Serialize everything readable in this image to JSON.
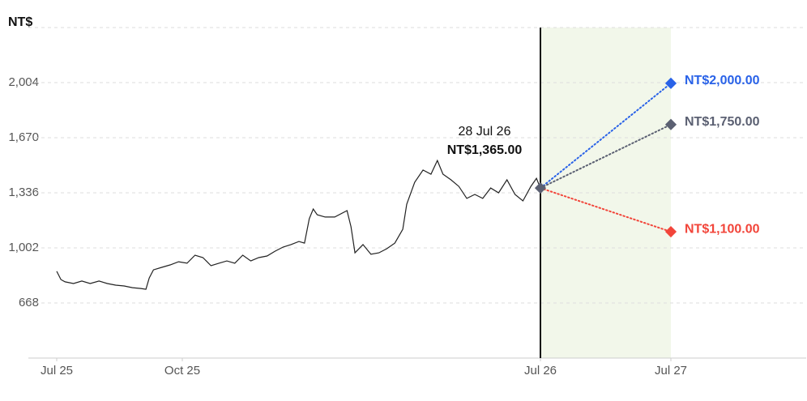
{
  "chart_data": {
    "type": "line",
    "y_axis_label": "NT$",
    "color": "#222222",
    "x": [
      0,
      0.1,
      0.2,
      0.4,
      0.6,
      0.8,
      1.01,
      1.21,
      1.41,
      1.61,
      1.81,
      2.01,
      2.13,
      2.21,
      2.31,
      2.51,
      2.71,
      2.91,
      3.12,
      3.32,
      3.52,
      3.72,
      3.92,
      4.12,
      4.32,
      4.52,
      4.72,
      4.92,
      5.13,
      5.33,
      5.53,
      5.73,
      5.93,
      6.07,
      6.19,
      6.29,
      6.39,
      6.59,
      6.83,
      7.14,
      7.24,
      7.34,
      7.54,
      7.74,
      7.94,
      8.14,
      8.34,
      8.54,
      8.64,
      8.84,
      9.05,
      9.25,
      9.41,
      9.55,
      9.75,
      9.95,
      10.15,
      10.35,
      10.55,
      10.75,
      10.95,
      11.16,
      11.36,
      11.56,
      11.76,
      11.9,
      12
    ],
    "values": [
      860,
      810,
      796,
      786,
      801,
      786,
      801,
      786,
      776,
      771,
      761,
      756,
      751,
      820,
      869,
      884,
      899,
      918,
      909,
      958,
      943,
      894,
      909,
      923,
      909,
      958,
      923,
      943,
      953,
      982,
      1007,
      1022,
      1041,
      1031,
      1179,
      1238,
      1203,
      1189,
      1189,
      1228,
      1130,
      972,
      1022,
      963,
      972,
      997,
      1031,
      1115,
      1267,
      1400,
      1474,
      1449,
      1532,
      1449,
      1415,
      1375,
      1302,
      1326,
      1302,
      1365,
      1336,
      1415,
      1326,
      1287,
      1375,
      1424,
      1365
    ],
    "xlim": [
      -0.7,
      36.5
    ],
    "xticks": [
      {
        "value": 0,
        "label": "Jul 25"
      },
      {
        "value": 3,
        "label": "Oct 25"
      },
      {
        "value": 12,
        "label": "Jul 26"
      },
      {
        "value": 24,
        "label": "Jul 27"
      }
    ],
    "ylim": [
      334,
      2338
    ],
    "yticks": [
      668,
      {
        "value": 1002,
        "label": "1,002"
      },
      {
        "value": 1336,
        "label": "1,336"
      },
      {
        "value": 1670,
        "label": "1,670"
      },
      {
        "value": 2004,
        "label": "2,004"
      }
    ],
    "grid": true,
    "annotation": {
      "label": "28 Jul 26",
      "value_label": "NT$1,365.00"
    },
    "forecast": {
      "x": 24,
      "region_color": "#f2f7ea",
      "targets": [
        {
          "color": "#2962e8",
          "value": 2000,
          "value_label": "NT$2,000.00"
        },
        {
          "color": "#5b6072",
          "value": 1750,
          "value_label": "NT$1,750.00"
        },
        {
          "color": "#f2453a",
          "value": 1100,
          "value_label": "NT$1,100.00"
        }
      ]
    }
  }
}
